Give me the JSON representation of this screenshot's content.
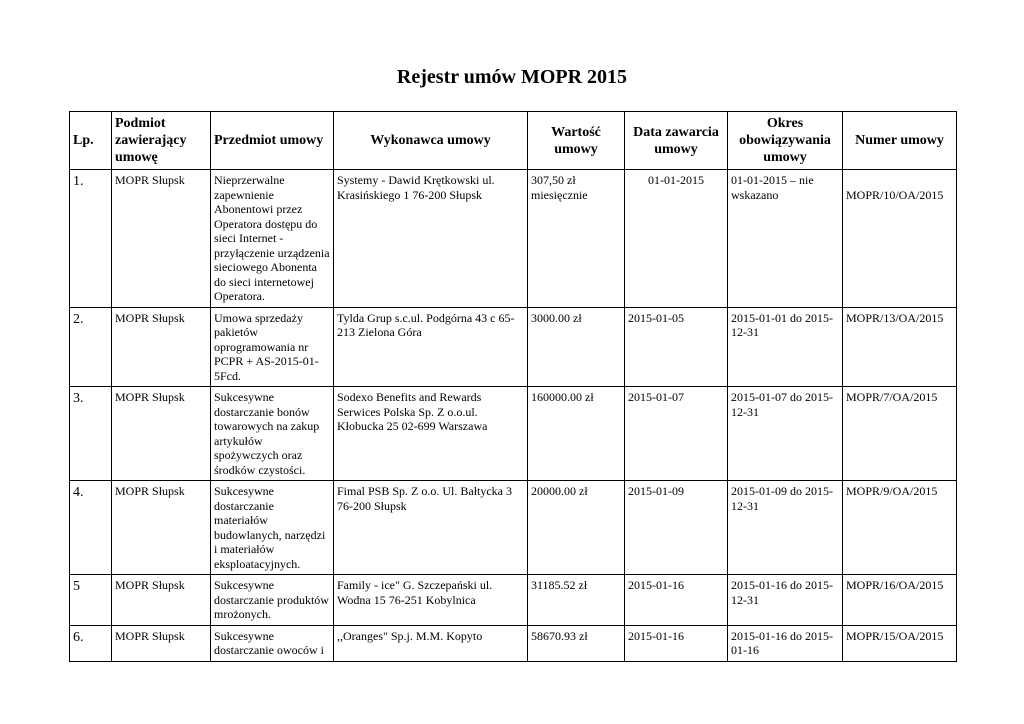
{
  "title": "Rejestr umów MOPR 2015",
  "table": {
    "header": [
      "Lp.",
      "Podmiot zawierający umowę",
      "Przedmiot umowy",
      "Wykonawca umowy",
      "Wartość umowy",
      "Data zawarcia umowy",
      "Okres obowiązywania umowy",
      "Numer umowy"
    ],
    "rows": [
      [
        "1.",
        "MOPR Słupsk",
        "Nieprzerwalne zapewnienie Abonentowi przez Operatora dostępu do sieci Internet - przyłączenie urządzenia sieciowego Abonenta do sieci internetowej Operatora.",
        "Systemy - Dawid Krętkowski ul. Krasińskiego 1 76-200 Słupsk",
        "307,50 zł miesięcznie",
        "01-01-2015",
        "01-01-2015 – nie wskazano",
        "MOPR/10/OA/2015"
      ],
      [
        "2.",
        "MOPR Słupsk",
        "Umowa sprzedaży pakietów oprogramowania nr PCPR + AS-2015-01-5Fcd.",
        "Tylda Grup s.c.ul. Podgórna 43 c 65-213 Zielona Góra",
        "3000.00 zł",
        "2015-01-05",
        "2015-01-01 do 2015-12-31",
        "MOPR/13/OA/2015"
      ],
      [
        "3.",
        "MOPR Słupsk",
        "Sukcesywne dostarczanie bonów towarowych na zakup artykułów spożywczych oraz środków czystości.",
        "Sodexo Benefits and Rewards Serwices Polska Sp. Z o.o.ul. Kłobucka 25 02-699 Warszawa",
        "160000.00 zł",
        "2015-01-07",
        "2015-01-07 do 2015-12-31",
        "MOPR/7/OA/2015"
      ],
      [
        "4.",
        "MOPR Słupsk",
        "Sukcesywne dostarczanie materiałów budowlanych, narzędzi i materiałów eksploatacyjnych.",
        "Fimal PSB Sp. Z o.o. Ul. Bałtycka 3 76-200 Słupsk",
        "20000.00 zł",
        "2015-01-09",
        "2015-01-09 do 2015-12-31",
        "MOPR/9/OA/2015"
      ],
      [
        "5",
        "MOPR Słupsk",
        "Sukcesywne dostarczanie produktów mrożonych.",
        "Family - ice\" G. Szczepański ul. Wodna 15 76-251 Kobylnica",
        "31185.52 zł",
        "2015-01-16",
        "2015-01-16 do 2015-12-31",
        "MOPR/16/OA/2015"
      ],
      [
        "6.",
        "MOPR Słupsk",
        "Sukcesywne dostarczanie owoców i",
        ",,Oranges\" Sp.j. M.M. Kopyto",
        "58670.93 zł",
        "2015-01-16",
        "2015-01-16 do 2015-01-16",
        "MOPR/15/OA/2015"
      ]
    ]
  }
}
